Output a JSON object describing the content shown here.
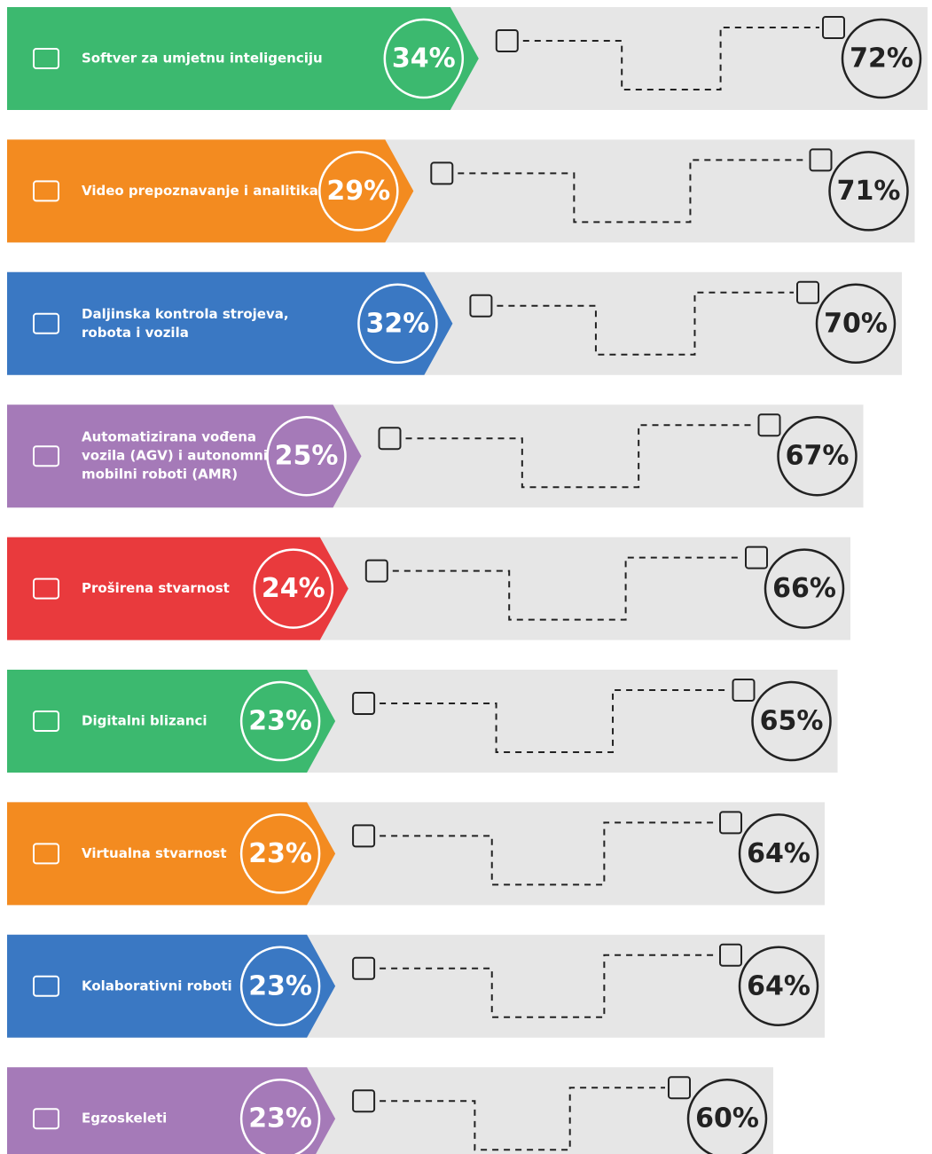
{
  "chart_data": {
    "type": "bar",
    "categories": [
      [
        "Softver za umjetnu inteligenciju"
      ],
      [
        "Video prepoznavanje i analitika"
      ],
      [
        "Daljinska kontrola strojeva,",
        "robota i vozila"
      ],
      [
        "Automatizirana vođena",
        "vozila (AGV) i autonomni",
        "mobilni roboti (AMR)"
      ],
      [
        "Proširena stvarnost"
      ],
      [
        "Digitalni blizanci"
      ],
      [
        "Virtualna stvarnost"
      ],
      [
        "Kolaborativni roboti"
      ],
      [
        "Egzoskeleti"
      ]
    ],
    "colors": [
      "#3cb96f",
      "#f38b20",
      "#3a78c3",
      "#a57ab8",
      "#e93a3d",
      "#3cb96f",
      "#f38b20",
      "#3a78c3",
      "#a57ab8"
    ],
    "series": [
      {
        "values": [
          34,
          29,
          32,
          25,
          24,
          23,
          23,
          23,
          23
        ],
        "value_labels": [
          "34%",
          "29%",
          "32%",
          "25%",
          "24%",
          "23%",
          "23%",
          "23%",
          "23%"
        ]
      },
      {
        "color": "#e6e6e6",
        "values": [
          72,
          71,
          70,
          67,
          66,
          65,
          64,
          64,
          60
        ],
        "value_labels": [
          "72%",
          "71%",
          "70%",
          "67%",
          "66%",
          "65%",
          "64%",
          "64%",
          "60%"
        ]
      }
    ]
  }
}
